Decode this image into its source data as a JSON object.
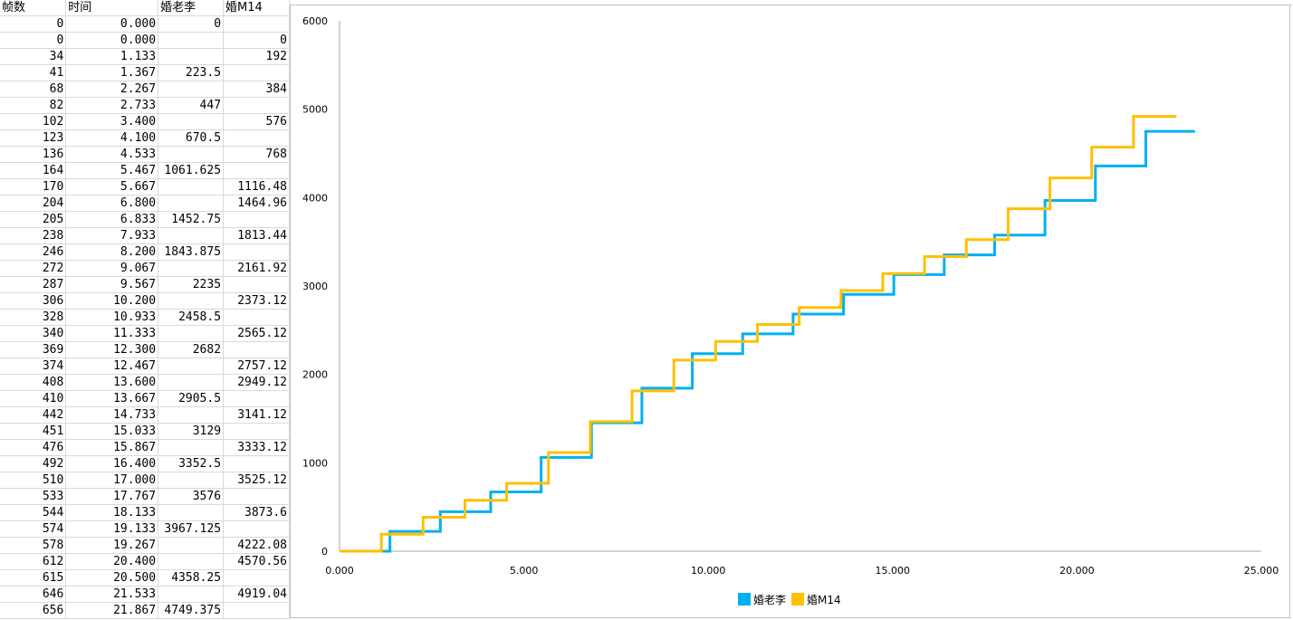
{
  "sheet": {
    "headers": [
      "帧数",
      "时间",
      "婚老李",
      "婚M14"
    ],
    "rows": [
      [
        "0",
        "0.000",
        "0",
        ""
      ],
      [
        "0",
        "0.000",
        "",
        "0"
      ],
      [
        "34",
        "1.133",
        "",
        "192"
      ],
      [
        "41",
        "1.367",
        "223.5",
        ""
      ],
      [
        "68",
        "2.267",
        "",
        "384"
      ],
      [
        "82",
        "2.733",
        "447",
        ""
      ],
      [
        "102",
        "3.400",
        "",
        "576"
      ],
      [
        "123",
        "4.100",
        "670.5",
        ""
      ],
      [
        "136",
        "4.533",
        "",
        "768"
      ],
      [
        "164",
        "5.467",
        "1061.625",
        ""
      ],
      [
        "170",
        "5.667",
        "",
        "1116.48"
      ],
      [
        "204",
        "6.800",
        "",
        "1464.96"
      ],
      [
        "205",
        "6.833",
        "1452.75",
        ""
      ],
      [
        "238",
        "7.933",
        "",
        "1813.44"
      ],
      [
        "246",
        "8.200",
        "1843.875",
        ""
      ],
      [
        "272",
        "9.067",
        "",
        "2161.92"
      ],
      [
        "287",
        "9.567",
        "2235",
        ""
      ],
      [
        "306",
        "10.200",
        "",
        "2373.12"
      ],
      [
        "328",
        "10.933",
        "2458.5",
        ""
      ],
      [
        "340",
        "11.333",
        "",
        "2565.12"
      ],
      [
        "369",
        "12.300",
        "2682",
        ""
      ],
      [
        "374",
        "12.467",
        "",
        "2757.12"
      ],
      [
        "408",
        "13.600",
        "",
        "2949.12"
      ],
      [
        "410",
        "13.667",
        "2905.5",
        ""
      ],
      [
        "442",
        "14.733",
        "",
        "3141.12"
      ],
      [
        "451",
        "15.033",
        "3129",
        ""
      ],
      [
        "476",
        "15.867",
        "",
        "3333.12"
      ],
      [
        "492",
        "16.400",
        "3352.5",
        ""
      ],
      [
        "510",
        "17.000",
        "",
        "3525.12"
      ],
      [
        "533",
        "17.767",
        "3576",
        ""
      ],
      [
        "544",
        "18.133",
        "",
        "3873.6"
      ],
      [
        "574",
        "19.133",
        "3967.125",
        ""
      ],
      [
        "578",
        "19.267",
        "",
        "4222.08"
      ],
      [
        "612",
        "20.400",
        "",
        "4570.56"
      ],
      [
        "615",
        "20.500",
        "4358.25",
        ""
      ],
      [
        "646",
        "21.533",
        "",
        "4919.04"
      ],
      [
        "656",
        "21.867",
        "4749.375",
        ""
      ]
    ]
  },
  "chart_data": {
    "type": "line",
    "step": "after",
    "title": "",
    "xlabel": "",
    "ylabel": "",
    "xlim": [
      0,
      25
    ],
    "ylim": [
      0,
      6000
    ],
    "x_ticks": [
      "0.000",
      "5.000",
      "10.000",
      "15.000",
      "20.000",
      "25.000"
    ],
    "y_ticks": [
      "0",
      "1000",
      "2000",
      "3000",
      "4000",
      "5000",
      "6000"
    ],
    "grid": false,
    "legend_position": "bottom",
    "series": [
      {
        "name": "婚老李",
        "color": "#00b0f0",
        "x": [
          0,
          1.367,
          2.733,
          4.1,
          5.467,
          6.833,
          8.2,
          9.567,
          10.933,
          12.3,
          13.667,
          15.033,
          16.4,
          17.767,
          19.133,
          20.5,
          21.867,
          23.2
        ],
        "y": [
          0,
          223.5,
          447,
          670.5,
          1061.625,
          1452.75,
          1843.875,
          2235,
          2458.5,
          2682,
          2905.5,
          3129,
          3352.5,
          3576,
          3967.125,
          4358.25,
          4749.375,
          4749.375
        ]
      },
      {
        "name": "婚M14",
        "color": "#ffc000",
        "x": [
          0,
          1.133,
          2.267,
          3.4,
          4.533,
          5.667,
          6.8,
          7.933,
          9.067,
          10.2,
          11.333,
          12.467,
          13.6,
          14.733,
          15.867,
          17.0,
          18.133,
          19.267,
          20.4,
          21.533,
          22.7
        ],
        "y": [
          0,
          192,
          384,
          576,
          768,
          1116.48,
          1464.96,
          1813.44,
          2161.92,
          2373.12,
          2565.12,
          2757.12,
          2949.12,
          3141.12,
          3333.12,
          3525.12,
          3873.6,
          4222.08,
          4570.56,
          4919.04,
          4919.04
        ]
      }
    ]
  }
}
